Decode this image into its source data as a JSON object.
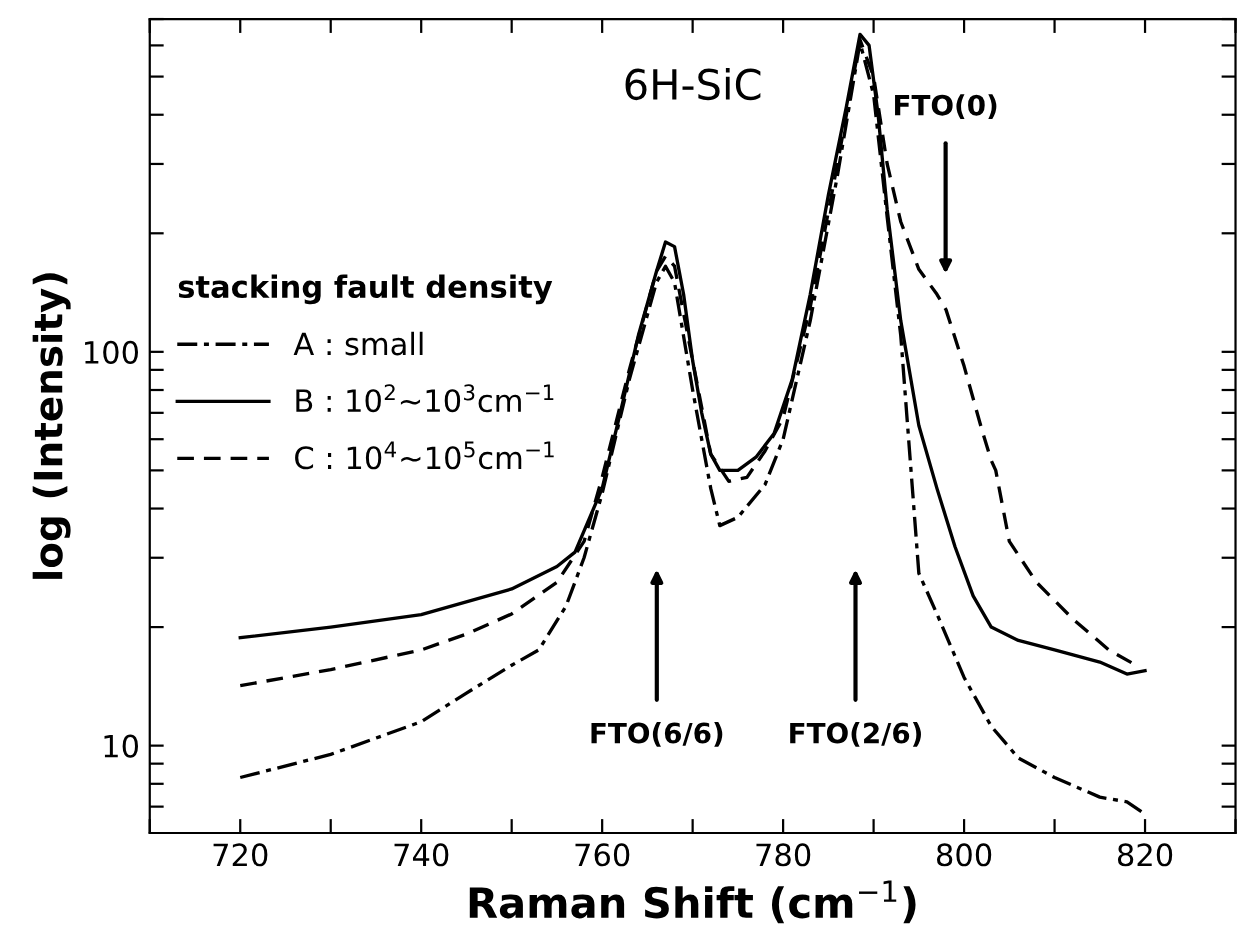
{
  "chart_data": {
    "type": "line",
    "xlabel": "Raman Shift (cm$^{−1}$)",
    "ylabel": "log (Intensity)",
    "legend_title": "stacking fault density",
    "log": "y",
    "xlim": [
      710,
      830
    ],
    "ylim": [
      6,
      700
    ],
    "grid": false,
    "legend": "top left",
    "marker": "none",
    "xticks": [
      {
        "value": 710,
        "label": null
      },
      720,
      {
        "value": 730,
        "label": null
      },
      740,
      {
        "value": 750,
        "label": null
      },
      760,
      {
        "value": 770,
        "label": null
      },
      780,
      {
        "value": 790,
        "label": null
      },
      800,
      {
        "value": 810,
        "label": null
      },
      820,
      {
        "value": 830,
        "label": null
      }
    ],
    "yticks": [
      {
        "value": 7,
        "label": null
      },
      {
        "value": 8,
        "label": null
      },
      {
        "value": 9,
        "label": null
      },
      10,
      {
        "value": 20,
        "label": null
      },
      {
        "value": 30,
        "label": null
      },
      {
        "value": 40,
        "label": null
      },
      {
        "value": 50,
        "label": null
      },
      {
        "value": 60,
        "label": null
      },
      {
        "value": 70,
        "label": null
      },
      {
        "value": 80,
        "label": null
      },
      {
        "value": 90,
        "label": null
      },
      100,
      {
        "value": 200,
        "label": null
      },
      {
        "value": 300,
        "label": null
      },
      {
        "value": 400,
        "label": null
      },
      {
        "value": 500,
        "label": null
      },
      {
        "value": 600,
        "label": null
      },
      {
        "value": 700,
        "label": null
      }
    ],
    "series": [
      {
        "name": "A : small",
        "color": "#000000",
        "line_style": "dashdot",
        "x": [
          720,
          730,
          740,
          745,
          750,
          753,
          756,
          758,
          760,
          763,
          766,
          767,
          768,
          770,
          772,
          773,
          775,
          778,
          780,
          783,
          786,
          788.5,
          790,
          791.5,
          793,
          795,
          797,
          800,
          803,
          806,
          810,
          815,
          818,
          820
        ],
        "values": [
          8.3,
          9.5,
          11.5,
          13.6,
          16,
          17.5,
          22.6,
          30,
          43.7,
          85,
          150,
          165,
          150,
          80,
          45,
          36.2,
          38,
          46,
          60,
          120,
          280,
          610,
          450,
          220,
          110,
          27.4,
          21.6,
          14.9,
          11.2,
          9.3,
          8.3,
          7.4,
          7.2,
          6.7
        ]
      },
      {
        "name": "B : 10$^{2}$∼10$^{3}$cm$^{−1}$",
        "color": "#000000",
        "line_style": "solid",
        "x": [
          720,
          730,
          740,
          750,
          755,
          757,
          760,
          762,
          764,
          766,
          767,
          768,
          769,
          770,
          771,
          772,
          773,
          775,
          777,
          779,
          781,
          783,
          785,
          787,
          788.5,
          789.5,
          790.5,
          791.5,
          793,
          795,
          797,
          799,
          801,
          803,
          806,
          810,
          815,
          818,
          820
        ],
        "values": [
          18.8,
          20,
          21.5,
          25,
          28.5,
          31,
          45,
          70,
          110,
          160,
          190,
          185,
          140,
          95,
          70,
          55,
          50,
          50,
          54,
          62,
          85,
          140,
          250,
          420,
          640,
          600,
          400,
          230,
          120,
          65,
          45,
          32,
          24,
          20,
          18.5,
          17.5,
          16.3,
          15.2,
          15.5
        ]
      },
      {
        "name": "C : 10$^{4}$∼10$^{5}$cm$^{−1}$",
        "color": "#000000",
        "line_style": "dashed",
        "x": [
          720,
          730,
          740,
          745,
          750,
          755,
          758,
          760,
          763,
          766,
          767,
          768,
          770,
          772,
          774,
          776,
          778,
          780,
          783,
          786,
          788.5,
          790,
          791.5,
          793,
          795,
          797,
          798,
          800,
          802,
          803,
          803.5,
          805,
          808,
          812,
          816,
          819
        ],
        "values": [
          14.2,
          15.6,
          17.5,
          19.2,
          21.6,
          26,
          33,
          48,
          90,
          160,
          175,
          165,
          95,
          55,
          46.9,
          48,
          56,
          68,
          130,
          300,
          620,
          500,
          300,
          214,
          162,
          140,
          128,
          92,
          63,
          53,
          50,
          33,
          26,
          21,
          17.5,
          16
        ]
      }
    ],
    "annotations": [
      "6H-SiC",
      "FTO(6/6)",
      "FTO(2/6)",
      "FTO(0)"
    ]
  }
}
